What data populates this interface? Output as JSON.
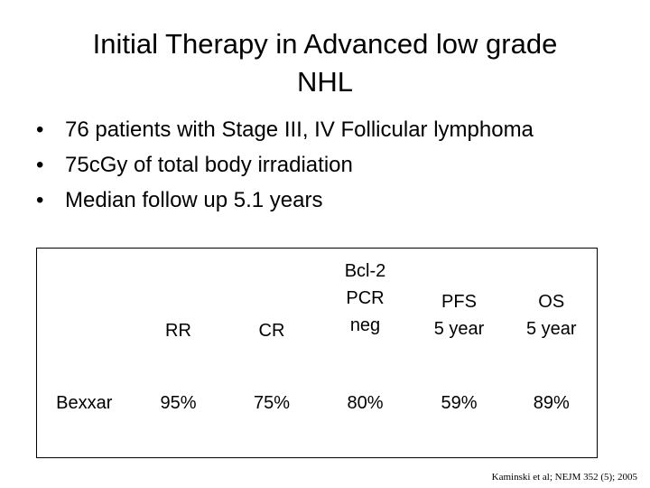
{
  "title": {
    "line1": "Initial Therapy in Advanced low grade",
    "line2": "NHL"
  },
  "bullets": [
    "76 patients with Stage III, IV Follicular lymphoma",
    "75cGy of total body irradiation",
    "Median follow up 5.1 years"
  ],
  "bullet_glyph": "•",
  "table": {
    "headers": {
      "rr": "RR",
      "cr": "CR",
      "bcl2_line1": "Bcl-2",
      "bcl2_line2": "PCR",
      "bcl2_line3": "neg",
      "pfs_line1": "PFS",
      "pfs_line2": "5 year",
      "os_line1": "OS",
      "os_line2": "5 year"
    },
    "row": {
      "label": "Bexxar",
      "rr": "95%",
      "cr": "75%",
      "bcl2": "80%",
      "pfs": "59%",
      "os": "89%"
    }
  },
  "citation": "Kaminski et al; NEJM 352 (5); 2005"
}
